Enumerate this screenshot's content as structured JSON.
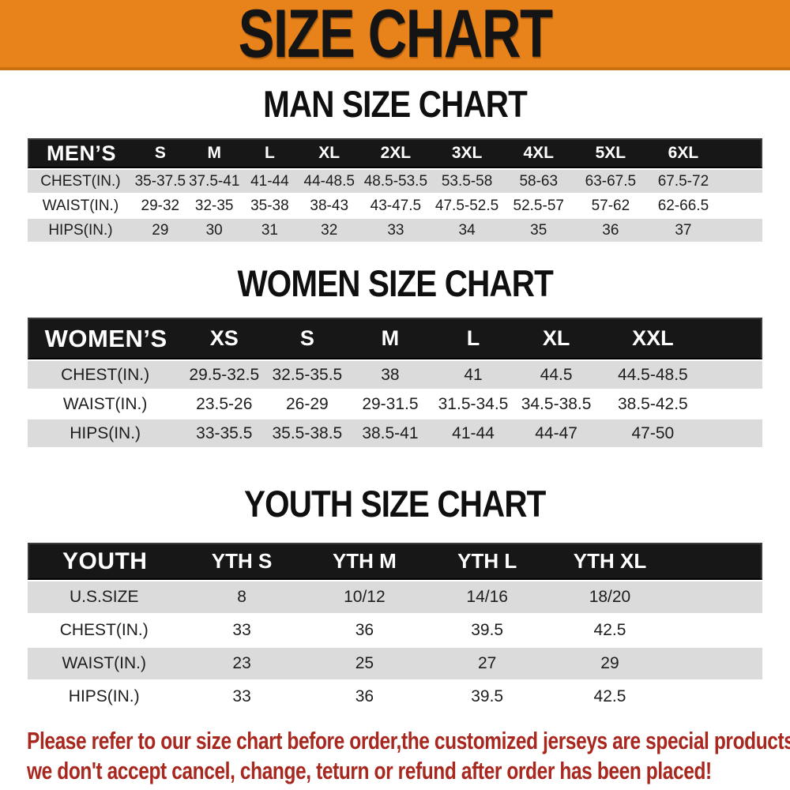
{
  "banner": {
    "title": "SIZE CHART",
    "background_color": "#E8821A",
    "text_color": "#141414"
  },
  "sections": [
    {
      "title": "MAN SIZE CHART",
      "header_label": "MEN’S",
      "columns": [
        "S",
        "M",
        "L",
        "XL",
        "2XL",
        "3XL",
        "4XL",
        "5XL",
        "6XL"
      ],
      "rows": [
        {
          "label": "CHEST(IN.)",
          "values": [
            "35-37.5",
            "37.5-41",
            "41-44",
            "44-48.5",
            "48.5-53.5",
            "53.5-58",
            "58-63",
            "63-67.5",
            "67.5-72"
          ]
        },
        {
          "label": "WAIST(IN.)",
          "values": [
            "29-32",
            "32-35",
            "35-38",
            "38-43",
            "43-47.5",
            "47.5-52.5",
            "52.5-57",
            "57-62",
            "62-66.5"
          ]
        },
        {
          "label": "HIPS(IN.)",
          "values": [
            "29",
            "30",
            "31",
            "32",
            "33",
            "34",
            "35",
            "36",
            "37"
          ]
        }
      ]
    },
    {
      "title": "WOMEN SIZE CHART",
      "header_label": "WOMEN’S",
      "columns": [
        "XS",
        "S",
        "M",
        "L",
        "XL",
        "XXL"
      ],
      "rows": [
        {
          "label": "CHEST(IN.)",
          "values": [
            "29.5-32.5",
            "32.5-35.5",
            "38",
            "41",
            "44.5",
            "44.5-48.5"
          ]
        },
        {
          "label": "WAIST(IN.)",
          "values": [
            "23.5-26",
            "26-29",
            "29-31.5",
            "31.5-34.5",
            "34.5-38.5",
            "38.5-42.5"
          ]
        },
        {
          "label": "HIPS(IN.)",
          "values": [
            "33-35.5",
            "35.5-38.5",
            "38.5-41",
            "41-44",
            "44-47",
            "47-50"
          ]
        }
      ]
    },
    {
      "title": "YOUTH SIZE CHART",
      "header_label": "YOUTH",
      "columns": [
        "YTH S",
        "YTH M",
        "YTH L",
        "YTH XL"
      ],
      "rows": [
        {
          "label": "U.S.SIZE",
          "values": [
            "8",
            "10/12",
            "14/16",
            "18/20"
          ]
        },
        {
          "label": "CHEST(IN.)",
          "values": [
            "33",
            "36",
            "39.5",
            "42.5"
          ]
        },
        {
          "label": "WAIST(IN.)",
          "values": [
            "23",
            "25",
            "27",
            "29"
          ]
        },
        {
          "label": "HIPS(IN.)",
          "values": [
            "33",
            "36",
            "39.5",
            "42.5"
          ]
        }
      ]
    }
  ],
  "disclaimer": {
    "line1": "Please refer to our size chart before order,the customized jerseys are special products,",
    "line2": "we don't accept cancel, change, teturn or refund after order has been placed!",
    "text_color": "#A8271E"
  },
  "colors": {
    "header_row_bg": "#171717",
    "header_row_text": "#FFFFFF",
    "stripe_row_bg": "#DBDBDB"
  }
}
